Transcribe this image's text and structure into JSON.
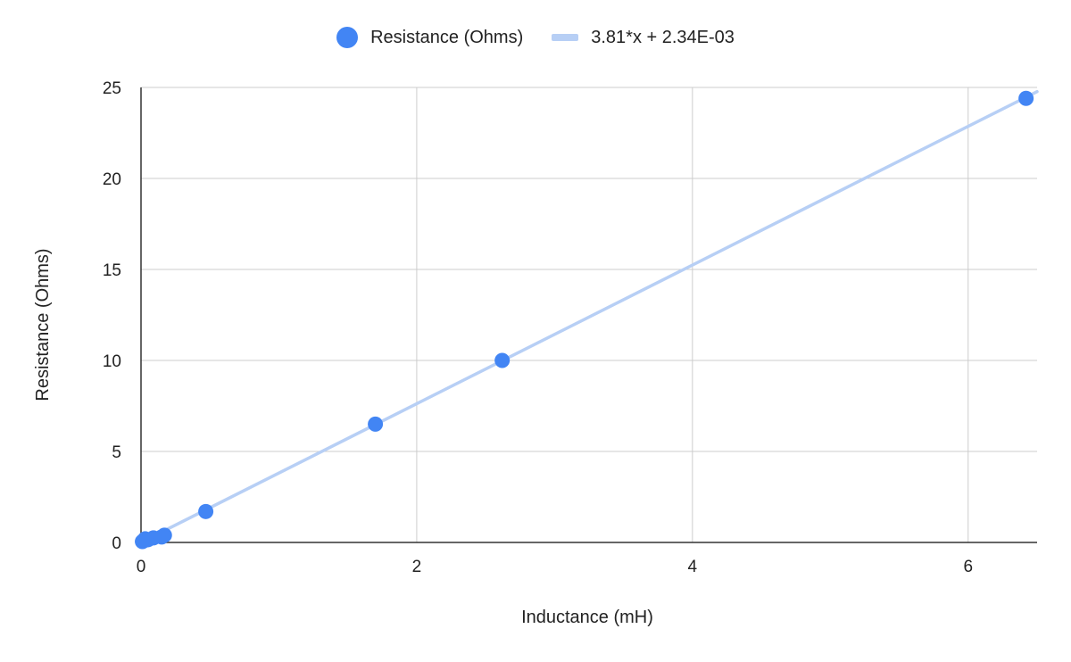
{
  "chart_data": {
    "type": "scatter",
    "xlabel": "Inductance (mH)",
    "ylabel": "Resistance (Ohms)",
    "xlim": [
      0,
      6.5
    ],
    "ylim": [
      0,
      25
    ],
    "x_ticks": [
      0,
      2,
      4,
      6
    ],
    "y_ticks": [
      0,
      5,
      10,
      15,
      20,
      25
    ],
    "grid": true,
    "legend_position": "top-center",
    "series": [
      {
        "name": "Resistance (Ohms)",
        "kind": "scatter",
        "color": "#4285f4",
        "points": [
          {
            "x": 0.01,
            "y": 0.05
          },
          {
            "x": 0.02,
            "y": 0.1
          },
          {
            "x": 0.03,
            "y": 0.2
          },
          {
            "x": 0.05,
            "y": 0.15
          },
          {
            "x": 0.09,
            "y": 0.25
          },
          {
            "x": 0.15,
            "y": 0.3
          },
          {
            "x": 0.17,
            "y": 0.4
          },
          {
            "x": 0.47,
            "y": 1.7
          },
          {
            "x": 1.7,
            "y": 6.5
          },
          {
            "x": 2.62,
            "y": 10.0
          },
          {
            "x": 6.42,
            "y": 24.4
          }
        ]
      },
      {
        "name": "3.81*x + 2.34E-03",
        "kind": "trendline",
        "color": "#b7cff5",
        "slope": 3.81,
        "intercept": 0.00234
      }
    ]
  }
}
